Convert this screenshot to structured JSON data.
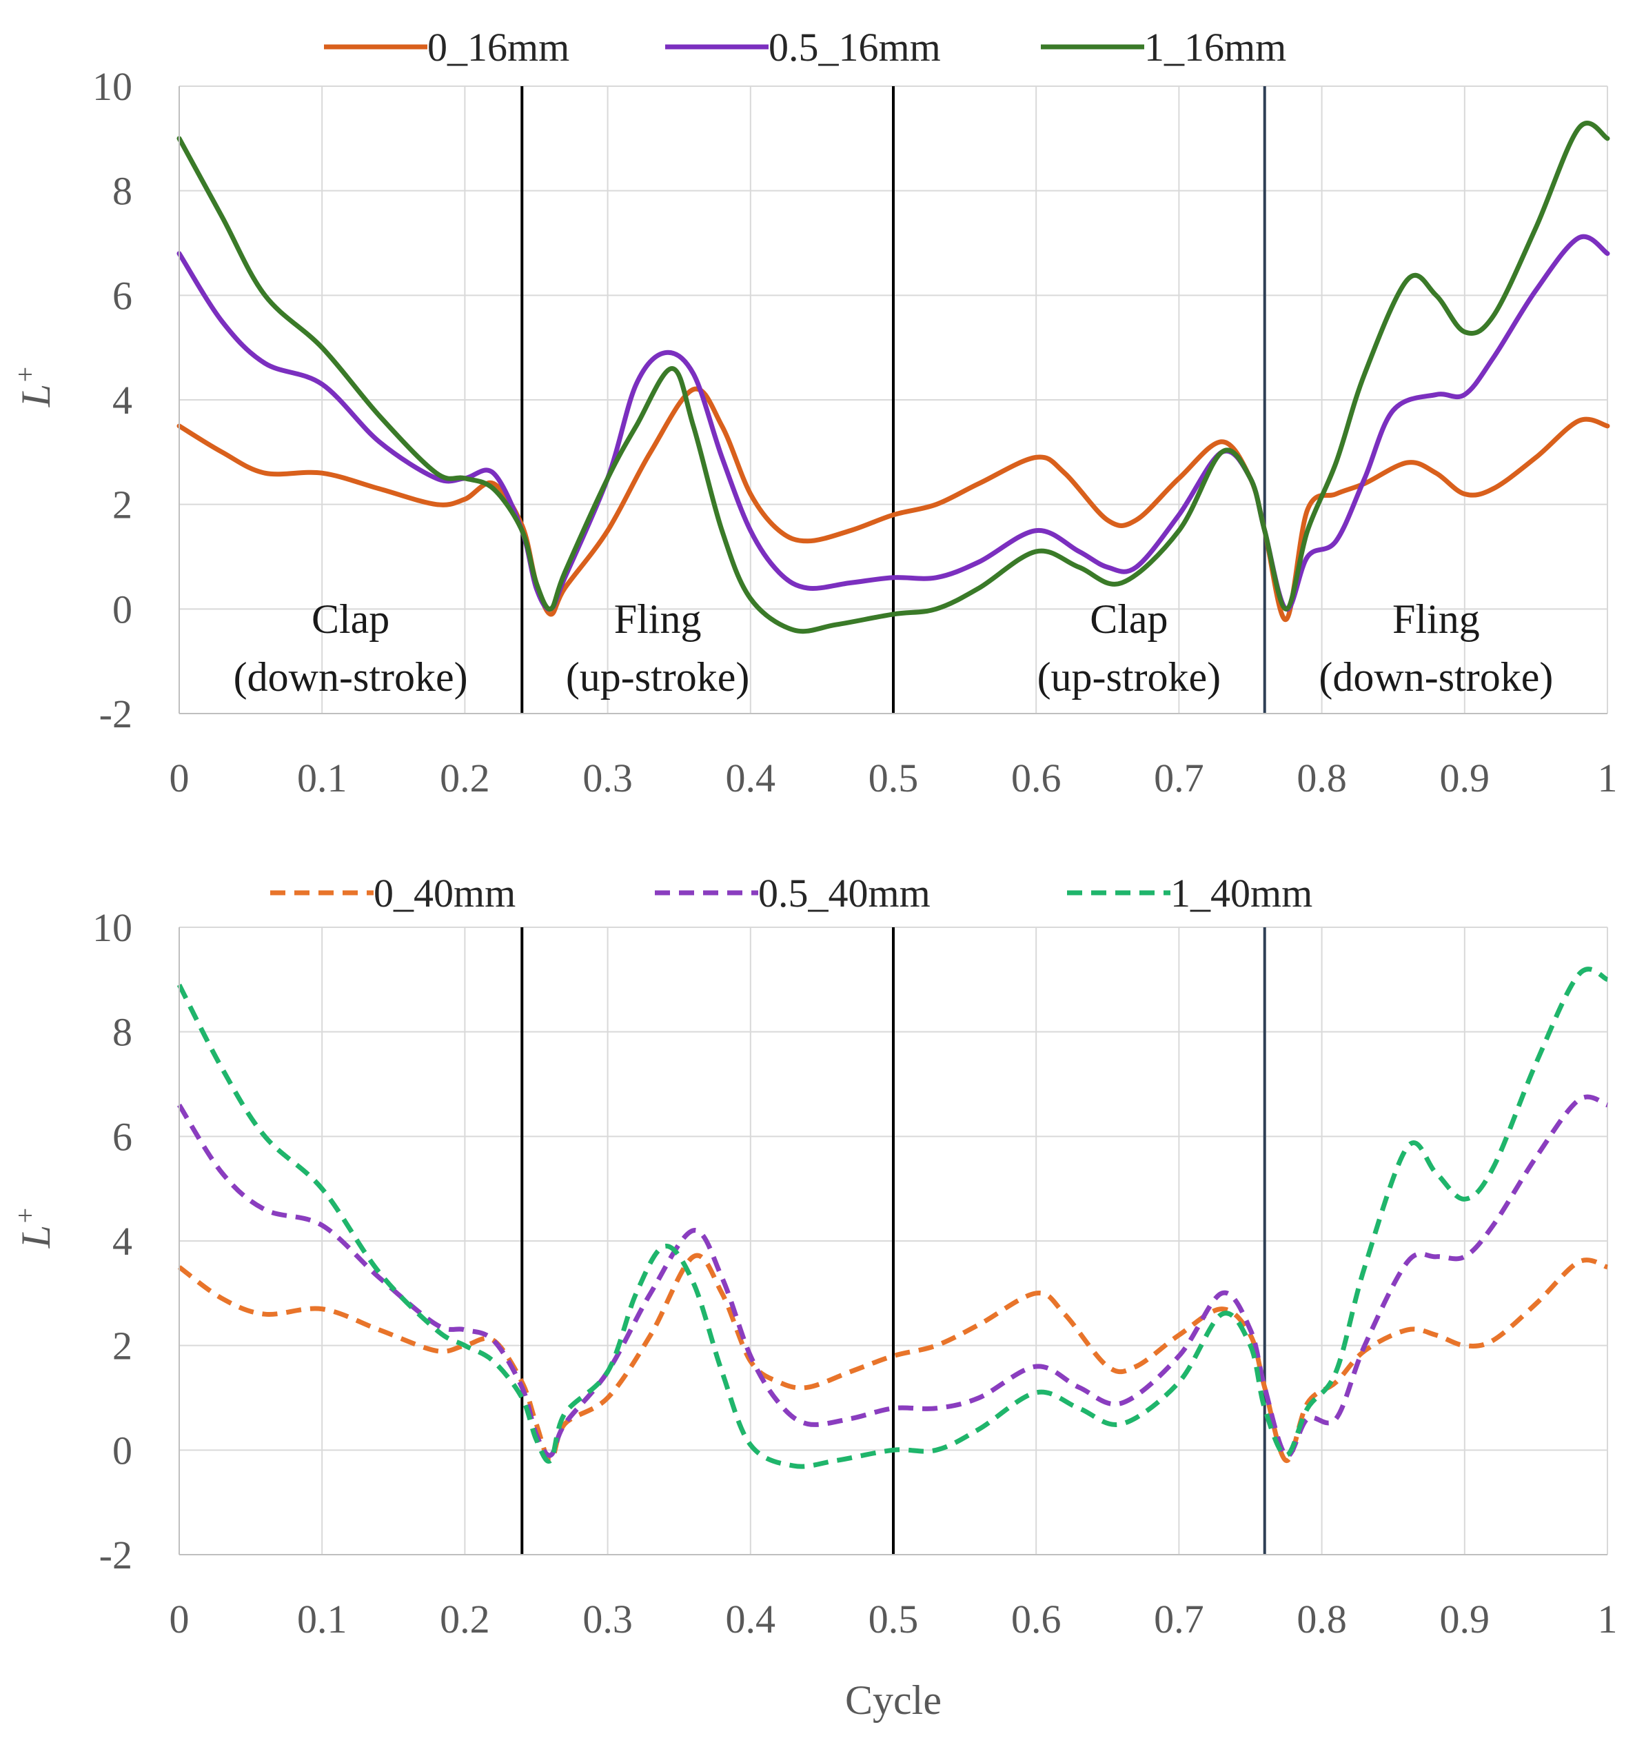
{
  "chart_data": [
    {
      "type": "line",
      "panel": "top",
      "title": "",
      "xlabel": "",
      "ylabel": "L",
      "ylabel_sup": "+",
      "xlim": [
        0,
        1
      ],
      "ylim": [
        -2,
        10
      ],
      "xticks": [
        "0",
        "0.1",
        "0.2",
        "0.3",
        "0.4",
        "0.5",
        "0.6",
        "0.7",
        "0.8",
        "0.9",
        "1"
      ],
      "yticks": [
        "-2",
        "0",
        "2",
        "4",
        "6",
        "8",
        "10"
      ],
      "legend_position": "top-center",
      "grid": true,
      "vlines": [
        0.24,
        0.5,
        0.76
      ],
      "annotations": [
        {
          "lines": [
            "Clap",
            "(down-stroke)"
          ],
          "x": 0.12
        },
        {
          "lines": [
            "Fling",
            "(up-stroke)"
          ],
          "x": 0.335
        },
        {
          "lines": [
            "Clap",
            "(up-stroke)"
          ],
          "x": 0.665
        },
        {
          "lines": [
            "Fling",
            "(down-stroke)"
          ],
          "x": 0.88
        }
      ],
      "series": [
        {
          "name": "0_16mm",
          "color": "#d9601c",
          "dashed": false,
          "x": [
            0,
            0.03,
            0.06,
            0.1,
            0.14,
            0.18,
            0.2,
            0.22,
            0.24,
            0.25,
            0.26,
            0.27,
            0.3,
            0.33,
            0.36,
            0.38,
            0.4,
            0.42,
            0.44,
            0.47,
            0.5,
            0.53,
            0.56,
            0.6,
            0.62,
            0.65,
            0.67,
            0.7,
            0.73,
            0.75,
            0.76,
            0.775,
            0.79,
            0.81,
            0.83,
            0.86,
            0.88,
            0.9,
            0.92,
            0.95,
            0.98,
            1.0
          ],
          "y": [
            3.5,
            3.0,
            2.6,
            2.6,
            2.3,
            2.0,
            2.1,
            2.4,
            1.6,
            0.5,
            -0.1,
            0.4,
            1.5,
            3.0,
            4.2,
            3.5,
            2.2,
            1.5,
            1.3,
            1.5,
            1.8,
            2.0,
            2.4,
            2.9,
            2.6,
            1.7,
            1.7,
            2.5,
            3.2,
            2.5,
            1.5,
            -0.2,
            1.9,
            2.2,
            2.4,
            2.8,
            2.6,
            2.2,
            2.3,
            2.9,
            3.6,
            3.5
          ]
        },
        {
          "name": "0.5_16mm",
          "color": "#7b2fbf",
          "dashed": false,
          "x": [
            0,
            0.03,
            0.06,
            0.1,
            0.14,
            0.18,
            0.2,
            0.22,
            0.24,
            0.25,
            0.26,
            0.27,
            0.3,
            0.32,
            0.34,
            0.36,
            0.38,
            0.4,
            0.42,
            0.44,
            0.47,
            0.5,
            0.53,
            0.56,
            0.6,
            0.63,
            0.65,
            0.67,
            0.7,
            0.73,
            0.75,
            0.76,
            0.775,
            0.79,
            0.81,
            0.83,
            0.85,
            0.88,
            0.9,
            0.92,
            0.95,
            0.98,
            1.0
          ],
          "y": [
            6.8,
            5.5,
            4.7,
            4.3,
            3.2,
            2.5,
            2.5,
            2.6,
            1.5,
            0.4,
            0.0,
            0.6,
            2.5,
            4.3,
            4.9,
            4.5,
            2.9,
            1.5,
            0.7,
            0.4,
            0.5,
            0.6,
            0.6,
            0.9,
            1.5,
            1.1,
            0.8,
            0.8,
            1.8,
            3.0,
            2.5,
            1.5,
            0.0,
            1.0,
            1.3,
            2.5,
            3.8,
            4.1,
            4.1,
            4.8,
            6.1,
            7.1,
            6.8
          ]
        },
        {
          "name": "1_16mm",
          "color": "#3a7a28",
          "dashed": false,
          "x": [
            0,
            0.03,
            0.06,
            0.1,
            0.14,
            0.18,
            0.2,
            0.22,
            0.24,
            0.25,
            0.26,
            0.27,
            0.3,
            0.32,
            0.345,
            0.36,
            0.38,
            0.4,
            0.43,
            0.46,
            0.5,
            0.53,
            0.56,
            0.6,
            0.63,
            0.66,
            0.7,
            0.73,
            0.75,
            0.76,
            0.775,
            0.79,
            0.81,
            0.83,
            0.86,
            0.88,
            0.9,
            0.92,
            0.95,
            0.98,
            1.0
          ],
          "y": [
            9.0,
            7.5,
            6.0,
            5.0,
            3.7,
            2.6,
            2.5,
            2.3,
            1.5,
            0.5,
            0.0,
            0.7,
            2.5,
            3.5,
            4.6,
            3.5,
            1.5,
            0.2,
            -0.4,
            -0.3,
            -0.1,
            0.0,
            0.4,
            1.1,
            0.8,
            0.5,
            1.5,
            3.0,
            2.5,
            1.5,
            0.0,
            1.5,
            2.8,
            4.5,
            6.3,
            6.0,
            5.3,
            5.6,
            7.3,
            9.2,
            9.0
          ]
        }
      ]
    },
    {
      "type": "line",
      "panel": "bottom",
      "title": "",
      "xlabel": "Cycle",
      "ylabel": "L",
      "ylabel_sup": "+",
      "xlim": [
        0,
        1
      ],
      "ylim": [
        -2,
        10
      ],
      "xticks": [
        "0",
        "0.1",
        "0.2",
        "0.3",
        "0.4",
        "0.5",
        "0.6",
        "0.7",
        "0.8",
        "0.9",
        "1"
      ],
      "yticks": [
        "-2",
        "0",
        "2",
        "4",
        "6",
        "8",
        "10"
      ],
      "legend_position": "top-center",
      "grid": true,
      "vlines": [
        0.24,
        0.5,
        0.76
      ],
      "annotations": [],
      "series": [
        {
          "name": "0_40mm",
          "color": "#e8742a",
          "dashed": true,
          "x": [
            0,
            0.03,
            0.06,
            0.1,
            0.14,
            0.18,
            0.2,
            0.22,
            0.24,
            0.25,
            0.26,
            0.27,
            0.3,
            0.33,
            0.36,
            0.38,
            0.4,
            0.42,
            0.44,
            0.47,
            0.5,
            0.53,
            0.56,
            0.6,
            0.62,
            0.65,
            0.67,
            0.7,
            0.73,
            0.75,
            0.76,
            0.775,
            0.79,
            0.81,
            0.83,
            0.86,
            0.88,
            0.9,
            0.92,
            0.95,
            0.98,
            1.0
          ],
          "y": [
            3.5,
            2.9,
            2.6,
            2.7,
            2.3,
            1.9,
            2.0,
            2.1,
            1.3,
            0.5,
            -0.2,
            0.5,
            1.0,
            2.2,
            3.7,
            3.0,
            1.7,
            1.3,
            1.2,
            1.5,
            1.8,
            2.0,
            2.4,
            3.0,
            2.6,
            1.6,
            1.6,
            2.2,
            2.7,
            2.2,
            1.2,
            -0.2,
            0.9,
            1.3,
            1.9,
            2.3,
            2.2,
            2.0,
            2.1,
            2.8,
            3.6,
            3.5
          ]
        },
        {
          "name": "0.5_40mm",
          "color": "#8a3dbf",
          "dashed": true,
          "x": [
            0,
            0.03,
            0.06,
            0.1,
            0.14,
            0.18,
            0.2,
            0.22,
            0.24,
            0.25,
            0.26,
            0.27,
            0.3,
            0.33,
            0.36,
            0.38,
            0.4,
            0.42,
            0.44,
            0.47,
            0.5,
            0.53,
            0.56,
            0.6,
            0.63,
            0.66,
            0.7,
            0.73,
            0.75,
            0.76,
            0.775,
            0.79,
            0.81,
            0.83,
            0.86,
            0.88,
            0.9,
            0.92,
            0.95,
            0.98,
            1.0
          ],
          "y": [
            6.6,
            5.3,
            4.6,
            4.3,
            3.3,
            2.4,
            2.3,
            2.1,
            1.2,
            0.3,
            -0.1,
            0.5,
            1.5,
            3.0,
            4.2,
            3.3,
            1.8,
            0.9,
            0.5,
            0.6,
            0.8,
            0.8,
            1.0,
            1.6,
            1.2,
            0.9,
            1.8,
            3.0,
            2.3,
            1.2,
            -0.1,
            0.6,
            0.6,
            2.0,
            3.6,
            3.7,
            3.7,
            4.3,
            5.6,
            6.7,
            6.6
          ]
        },
        {
          "name": "1_40mm",
          "color": "#1fb56b",
          "dashed": true,
          "x": [
            0,
            0.03,
            0.06,
            0.1,
            0.14,
            0.18,
            0.2,
            0.22,
            0.24,
            0.25,
            0.26,
            0.27,
            0.3,
            0.32,
            0.34,
            0.36,
            0.38,
            0.4,
            0.43,
            0.46,
            0.5,
            0.53,
            0.56,
            0.6,
            0.63,
            0.66,
            0.7,
            0.73,
            0.75,
            0.76,
            0.775,
            0.79,
            0.81,
            0.83,
            0.86,
            0.88,
            0.9,
            0.92,
            0.95,
            0.98,
            1.0
          ],
          "y": [
            8.9,
            7.3,
            6.0,
            5.0,
            3.4,
            2.3,
            2.0,
            1.7,
            1.0,
            0.2,
            -0.2,
            0.7,
            1.5,
            3.0,
            3.9,
            3.2,
            1.5,
            0.1,
            -0.3,
            -0.2,
            0.0,
            0.0,
            0.4,
            1.1,
            0.8,
            0.5,
            1.3,
            2.6,
            2.0,
            0.8,
            -0.1,
            0.8,
            1.5,
            3.5,
            5.8,
            5.3,
            4.8,
            5.4,
            7.4,
            9.1,
            9.0
          ]
        }
      ]
    }
  ]
}
